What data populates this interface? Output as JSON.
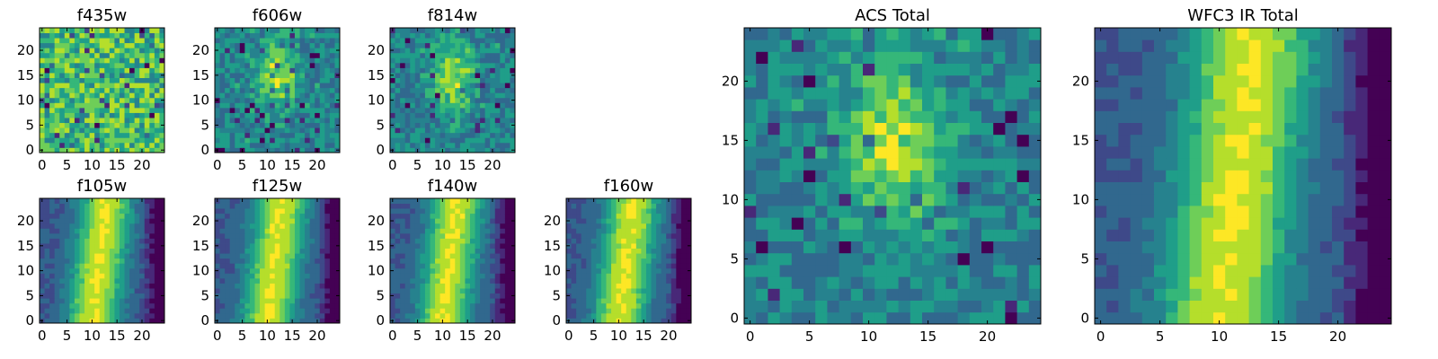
{
  "chart_data": [
    {
      "type": "heatmap",
      "title": "f435w",
      "xticks": [
        "0",
        "5",
        "10",
        "15",
        "20"
      ],
      "yticks": [
        "0",
        "5",
        "10",
        "15",
        "20"
      ],
      "xlim": [
        -0.5,
        24.5
      ],
      "ylim": [
        -0.5,
        24.5
      ],
      "colormap": "viridis",
      "pattern": "noise"
    },
    {
      "type": "heatmap",
      "title": "f606w",
      "xticks": [
        "0",
        "5",
        "10",
        "15",
        "20"
      ],
      "yticks": [
        "0",
        "5",
        "10",
        "15",
        "20"
      ],
      "xlim": [
        -0.5,
        24.5
      ],
      "ylim": [
        -0.5,
        24.5
      ],
      "colormap": "viridis",
      "pattern": "noise-center"
    },
    {
      "type": "heatmap",
      "title": "f814w",
      "xticks": [
        "0",
        "5",
        "10",
        "15",
        "20"
      ],
      "yticks": [
        "0",
        "5",
        "10",
        "15",
        "20"
      ],
      "xlim": [
        -0.5,
        24.5
      ],
      "ylim": [
        -0.5,
        24.5
      ],
      "colormap": "viridis",
      "pattern": "noise-center"
    },
    {
      "type": "heatmap",
      "title": "f105w",
      "xticks": [
        "0",
        "5",
        "10",
        "15",
        "20"
      ],
      "yticks": [
        "0",
        "5",
        "10",
        "15",
        "20"
      ],
      "xlim": [
        -0.5,
        24.5
      ],
      "ylim": [
        -0.5,
        24.5
      ],
      "colormap": "viridis",
      "pattern": "ir-band"
    },
    {
      "type": "heatmap",
      "title": "f125w",
      "xticks": [
        "0",
        "5",
        "10",
        "15",
        "20"
      ],
      "yticks": [
        "0",
        "5",
        "10",
        "15",
        "20"
      ],
      "xlim": [
        -0.5,
        24.5
      ],
      "ylim": [
        -0.5,
        24.5
      ],
      "colormap": "viridis",
      "pattern": "ir-band"
    },
    {
      "type": "heatmap",
      "title": "f140w",
      "xticks": [
        "0",
        "5",
        "10",
        "15",
        "20"
      ],
      "yticks": [
        "0",
        "5",
        "10",
        "15",
        "20"
      ],
      "xlim": [
        -0.5,
        24.5
      ],
      "ylim": [
        -0.5,
        24.5
      ],
      "colormap": "viridis",
      "pattern": "ir-band"
    },
    {
      "type": "heatmap",
      "title": "f160w",
      "xticks": [
        "0",
        "5",
        "10",
        "15",
        "20"
      ],
      "yticks": [
        "0",
        "5",
        "10",
        "15",
        "20"
      ],
      "xlim": [
        -0.5,
        24.5
      ],
      "ylim": [
        -0.5,
        24.5
      ],
      "colormap": "viridis",
      "pattern": "ir-band"
    },
    {
      "type": "heatmap",
      "title": "ACS Total",
      "xticks": [
        "0",
        "5",
        "10",
        "15",
        "20"
      ],
      "yticks": [
        "0",
        "5",
        "10",
        "15",
        "20"
      ],
      "xlim": [
        -0.5,
        24.5
      ],
      "ylim": [
        -0.5,
        24.5
      ],
      "colormap": "viridis",
      "pattern": "noise-center"
    },
    {
      "type": "heatmap",
      "title": "WFC3 IR Total",
      "xticks": [
        "0",
        "5",
        "10",
        "15",
        "20"
      ],
      "yticks": [
        "0",
        "5",
        "10",
        "15",
        "20"
      ],
      "xlim": [
        -0.5,
        24.5
      ],
      "ylim": [
        -0.5,
        24.5
      ],
      "colormap": "viridis",
      "pattern": "ir-band"
    }
  ],
  "colors": {
    "viridis": [
      "#440154",
      "#482878",
      "#3e4989",
      "#31688e",
      "#26828e",
      "#1f9e89",
      "#35b779",
      "#6ece58",
      "#b5de2b",
      "#fde725"
    ]
  }
}
